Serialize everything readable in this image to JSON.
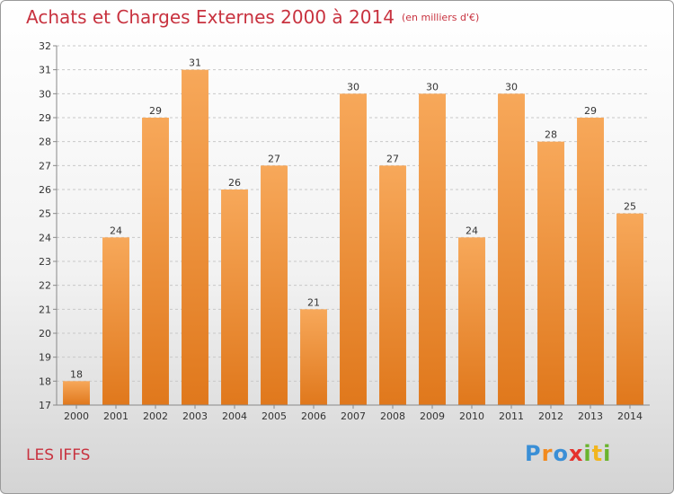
{
  "title": "Achats et Charges Externes 2000 à 2014",
  "subtitle": "(en milliers d'€)",
  "location": "LES IFFS",
  "logo": {
    "p": "P",
    "r": "r",
    "o": "o",
    "x": "x",
    "i": "i",
    "t": "t",
    "i2": "i"
  },
  "colors": {
    "bar_light": "#f7a85a",
    "bar_dark": "#e0781c",
    "title": "#c8323f"
  },
  "chart_data": {
    "type": "bar",
    "categories": [
      "2000",
      "2001",
      "2002",
      "2003",
      "2004",
      "2005",
      "2006",
      "2007",
      "2008",
      "2009",
      "2010",
      "2011",
      "2012",
      "2013",
      "2014"
    ],
    "values": [
      18,
      24,
      29,
      31,
      26,
      27,
      21,
      30,
      27,
      30,
      24,
      30,
      28,
      29,
      25
    ],
    "ylim": [
      17,
      32
    ],
    "yticks": [
      17,
      18,
      19,
      20,
      21,
      22,
      23,
      24,
      25,
      26,
      27,
      28,
      29,
      30,
      31,
      32
    ],
    "grid": true
  }
}
